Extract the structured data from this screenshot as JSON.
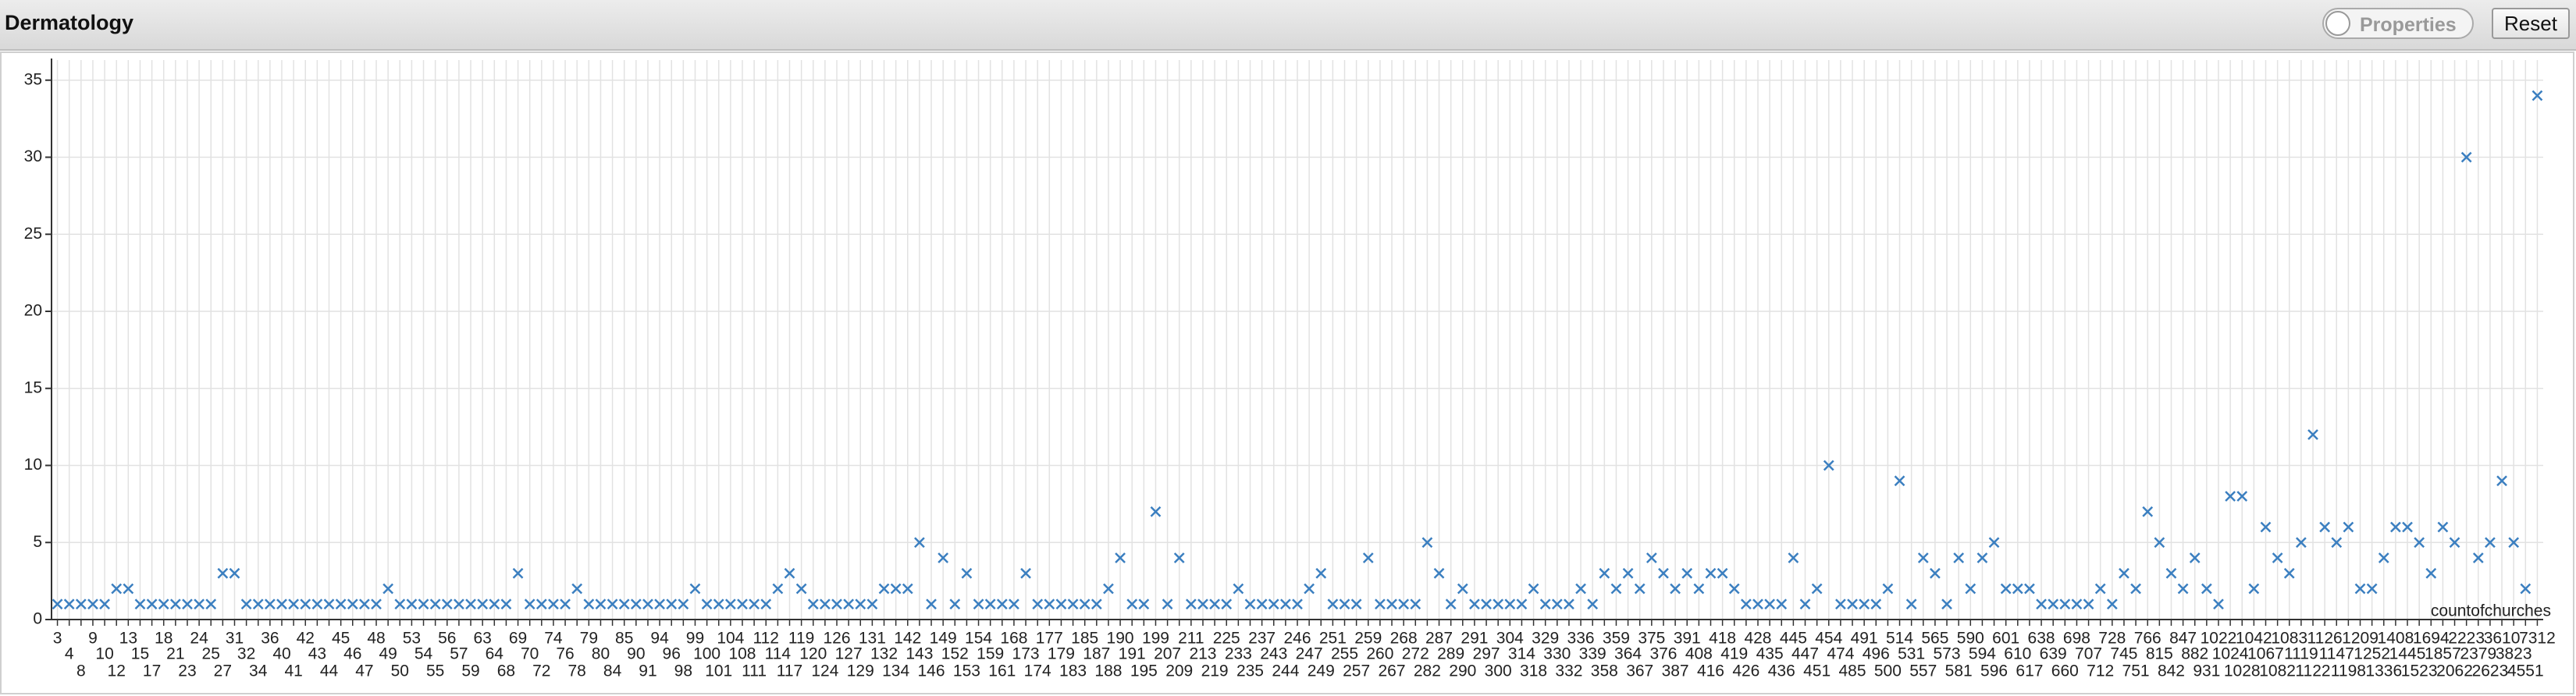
{
  "title": "Dermatology",
  "toolbar": {
    "properties": "Properties",
    "reset": "Reset"
  },
  "chart_data": {
    "type": "scatter",
    "x_label": "countofchurches",
    "color": "#3b7fc0",
    "grid": true,
    "categories": [
      "3",
      "4",
      "8",
      "9",
      "10",
      "12",
      "13",
      "15",
      "17",
      "18",
      "21",
      "23",
      "24",
      "25",
      "27",
      "31",
      "32",
      "34",
      "36",
      "40",
      "41",
      "42",
      "43",
      "44",
      "45",
      "46",
      "47",
      "48",
      "49",
      "50",
      "53",
      "54",
      "55",
      "56",
      "57",
      "59",
      "63",
      "64",
      "68",
      "69",
      "70",
      "72",
      "74",
      "76",
      "78",
      "79",
      "80",
      "84",
      "85",
      "90",
      "91",
      "94",
      "96",
      "98",
      "99",
      "100",
      "101",
      "104",
      "108",
      "111",
      "112",
      "114",
      "117",
      "119",
      "120",
      "124",
      "126",
      "127",
      "129",
      "131",
      "132",
      "134",
      "142",
      "143",
      "146",
      "149",
      "152",
      "153",
      "154",
      "159",
      "161",
      "168",
      "173",
      "174",
      "177",
      "179",
      "183",
      "185",
      "187",
      "188",
      "190",
      "191",
      "195",
      "199",
      "207",
      "209",
      "211",
      "213",
      "219",
      "225",
      "233",
      "235",
      "237",
      "243",
      "244",
      "246",
      "247",
      "249",
      "251",
      "255",
      "257",
      "259",
      "260",
      "267",
      "268",
      "272",
      "282",
      "287",
      "289",
      "290",
      "291",
      "297",
      "300",
      "304",
      "314",
      "318",
      "329",
      "330",
      "332",
      "336",
      "339",
      "358",
      "359",
      "364",
      "367",
      "375",
      "376",
      "387",
      "391",
      "408",
      "416",
      "418",
      "419",
      "426",
      "428",
      "435",
      "436",
      "445",
      "447",
      "451",
      "454",
      "474",
      "485",
      "491",
      "496",
      "500",
      "514",
      "531",
      "557",
      "565",
      "573",
      "581",
      "590",
      "594",
      "596",
      "601",
      "610",
      "617",
      "638",
      "639",
      "660",
      "698",
      "707",
      "712",
      "728",
      "745",
      "751",
      "766",
      "815",
      "842",
      "847",
      "882",
      "931",
      "1022",
      "1024",
      "1028",
      "1042",
      "1067",
      "1082",
      "1083",
      "1119",
      "1122",
      "1126",
      "1147",
      "1198",
      "1209",
      "1252",
      "1336",
      "1408",
      "1445",
      "1523",
      "1694",
      "1857",
      "2062",
      "2223",
      "2379",
      "2623",
      "3610",
      "3823",
      "4551",
      "7312"
    ],
    "values": [
      1,
      1,
      1,
      1,
      1,
      2,
      2,
      1,
      1,
      1,
      1,
      1,
      1,
      1,
      3,
      3,
      1,
      1,
      1,
      1,
      1,
      1,
      1,
      1,
      1,
      1,
      1,
      1,
      2,
      1,
      1,
      1,
      1,
      1,
      1,
      1,
      1,
      1,
      1,
      3,
      1,
      1,
      1,
      1,
      2,
      1,
      1,
      1,
      1,
      1,
      1,
      1,
      1,
      1,
      2,
      1,
      1,
      1,
      1,
      1,
      1,
      2,
      3,
      2,
      1,
      1,
      1,
      1,
      1,
      1,
      2,
      2,
      2,
      5,
      1,
      4,
      1,
      3,
      1,
      1,
      1,
      1,
      3,
      1,
      1,
      1,
      1,
      1,
      1,
      2,
      4,
      1,
      1,
      7,
      1,
      4,
      1,
      1,
      1,
      1,
      2,
      1,
      1,
      1,
      1,
      1,
      2,
      3,
      1,
      1,
      1,
      4,
      1,
      1,
      1,
      1,
      5,
      3,
      1,
      2,
      1,
      1,
      1,
      1,
      1,
      2,
      1,
      1,
      1,
      2,
      1,
      3,
      2,
      3,
      2,
      4,
      3,
      2,
      3,
      2,
      3,
      3,
      2,
      1,
      1,
      1,
      1,
      4,
      1,
      2,
      10,
      1,
      1,
      1,
      1,
      2,
      9,
      1,
      4,
      3,
      1,
      4,
      2,
      4,
      5,
      2,
      2,
      2,
      1,
      1,
      1,
      1,
      1,
      2,
      1,
      3,
      2,
      7,
      5,
      3,
      2,
      4,
      2,
      1,
      8,
      8,
      2,
      6,
      4,
      3,
      5,
      12,
      6,
      5,
      6,
      2,
      2,
      4,
      6,
      6,
      5,
      3,
      6,
      5,
      30,
      4,
      5,
      9,
      5,
      2,
      34
    ],
    "ylim": [
      0,
      36
    ],
    "yticks": [
      0,
      5,
      10,
      15,
      20,
      25,
      30,
      35
    ]
  }
}
